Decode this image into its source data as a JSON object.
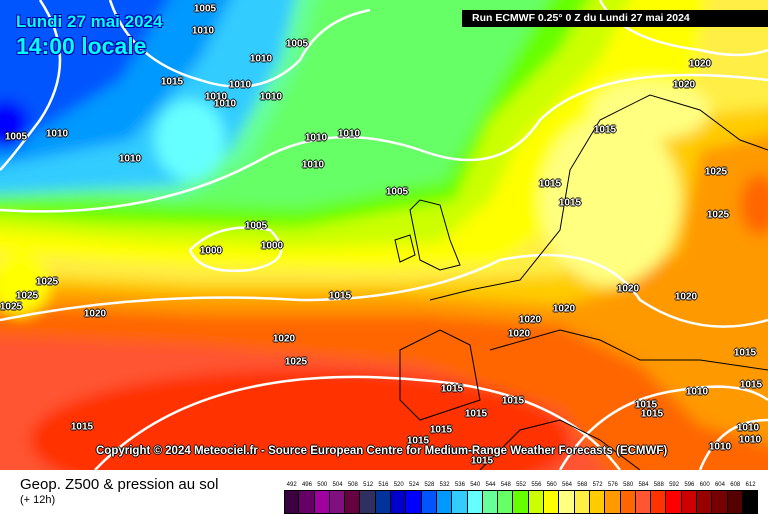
{
  "header": {
    "date": "Lundi 27 mai 2024",
    "time": "14:00 locale",
    "run": "Run ECMWF 0.25° 0 Z du Lundi 27 mai 2024"
  },
  "copyright": "Copyright © 2024 Meteociel.fr - Source European Centre for Medium-Range Weather Forecasts (ECMWF)",
  "legend": {
    "title": "Geop. Z500 & pression au sol",
    "subtitle": "(+ 12h)",
    "levels": [
      "492",
      "496",
      "500",
      "504",
      "508",
      "512",
      "516",
      "520",
      "524",
      "528",
      "532",
      "536",
      "540",
      "544",
      "548",
      "552",
      "556",
      "560",
      "564",
      "568",
      "572",
      "576",
      "580",
      "584",
      "588",
      "592",
      "596",
      "600",
      "604",
      "608",
      "612"
    ],
    "colors": [
      "#3a0040",
      "#660066",
      "#a000a0",
      "#801080",
      "#660040",
      "#303060",
      "#003399",
      "#0000cc",
      "#0000ff",
      "#0055ff",
      "#0099ff",
      "#33ccff",
      "#66ffff",
      "#66ff99",
      "#66ff66",
      "#66ff00",
      "#ccff00",
      "#ffff00",
      "#ffff80",
      "#ffee44",
      "#ffcc00",
      "#ff9900",
      "#ff6600",
      "#ff5533",
      "#ff3300",
      "#ff0000",
      "#cc0000",
      "#990000",
      "#770000",
      "#550000",
      "#000000"
    ]
  },
  "isobar_labels": [
    "1005",
    "1010",
    "1005",
    "1015",
    "1010",
    "1010",
    "1010",
    "1010",
    "1010",
    "1005",
    "1010",
    "1010",
    "1010",
    "1010",
    "1010",
    "1005",
    "1005",
    "1000",
    "1000",
    "1025",
    "1025",
    "1025",
    "1020",
    "1015",
    "1020",
    "1025",
    "1015",
    "1020",
    "1020",
    "1015",
    "1015",
    "1015",
    "1025",
    "1025",
    "1020",
    "1020",
    "1020",
    "1020",
    "1020",
    "1015",
    "1010",
    "1015",
    "1015",
    "1015",
    "1015",
    "1015",
    "1015",
    "1015",
    "1015",
    "1015",
    "1010",
    "1010",
    "1010"
  ]
}
